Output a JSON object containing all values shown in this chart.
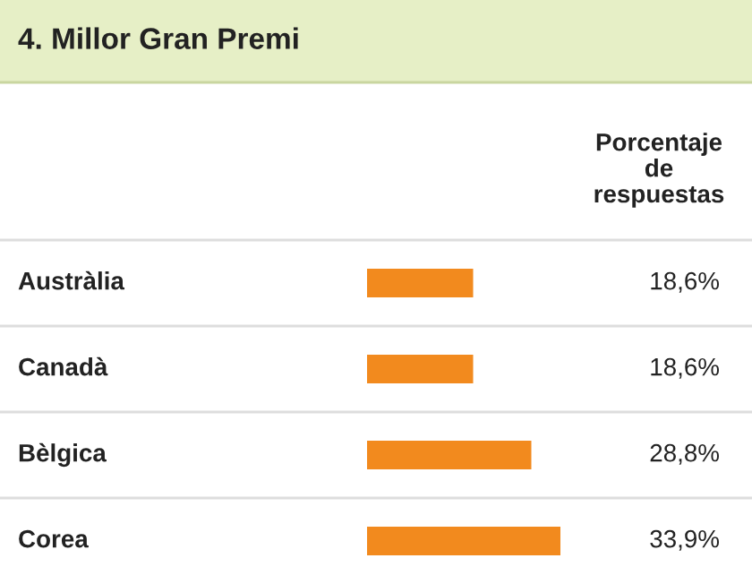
{
  "chart_data": {
    "type": "bar",
    "orientation": "horizontal",
    "title": "4. Millor Gran Premi",
    "annotations": [
      "Porcentaje de respuestas"
    ],
    "categories": [
      "Austràlia",
      "Canadà",
      "Bèlgica",
      "Corea"
    ],
    "values": [
      18.6,
      18.6,
      28.8,
      33.9
    ],
    "value_labels": [
      "18,6%",
      "18,6%",
      "28,8%",
      "33,9%"
    ],
    "color": "#f28a1e"
  }
}
